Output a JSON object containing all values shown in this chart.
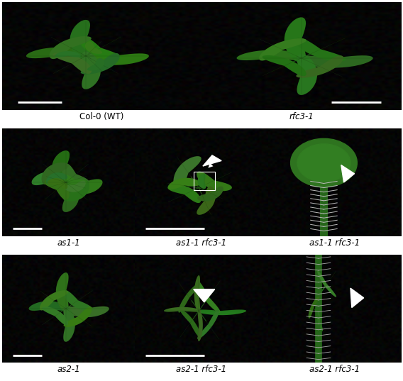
{
  "figure_width": 5.68,
  "figure_height": 5.37,
  "dpi": 100,
  "labels": {
    "r0c0": "Col-0 (WT)",
    "r0c1": "rfc3-1",
    "r1c0": "as1-1",
    "r1c1": "as1-1 rfc3-1",
    "r1c2": "as1-1 rfc3-1",
    "r2c0": "as2-1",
    "r2c1": "as2-1 rfc3-1",
    "r2c2": "as2-1 rfc3-1"
  },
  "label_fontsize": 8.5,
  "figure_bg": "#ffffff",
  "panel_bg": "#060606",
  "row0_ncols": 2,
  "row1_ncols": 3,
  "row2_ncols": 3,
  "leaf_color_main": [
    0.18,
    0.45,
    0.12
  ],
  "leaf_color_dark": [
    0.1,
    0.28,
    0.07
  ],
  "leaf_color_light": [
    0.22,
    0.55,
    0.15
  ],
  "stem_color": [
    0.15,
    0.4,
    0.1
  ],
  "scale_bar_color": "#ffffff",
  "arrow_color": "#ffffff",
  "box_color": "#ffffff"
}
